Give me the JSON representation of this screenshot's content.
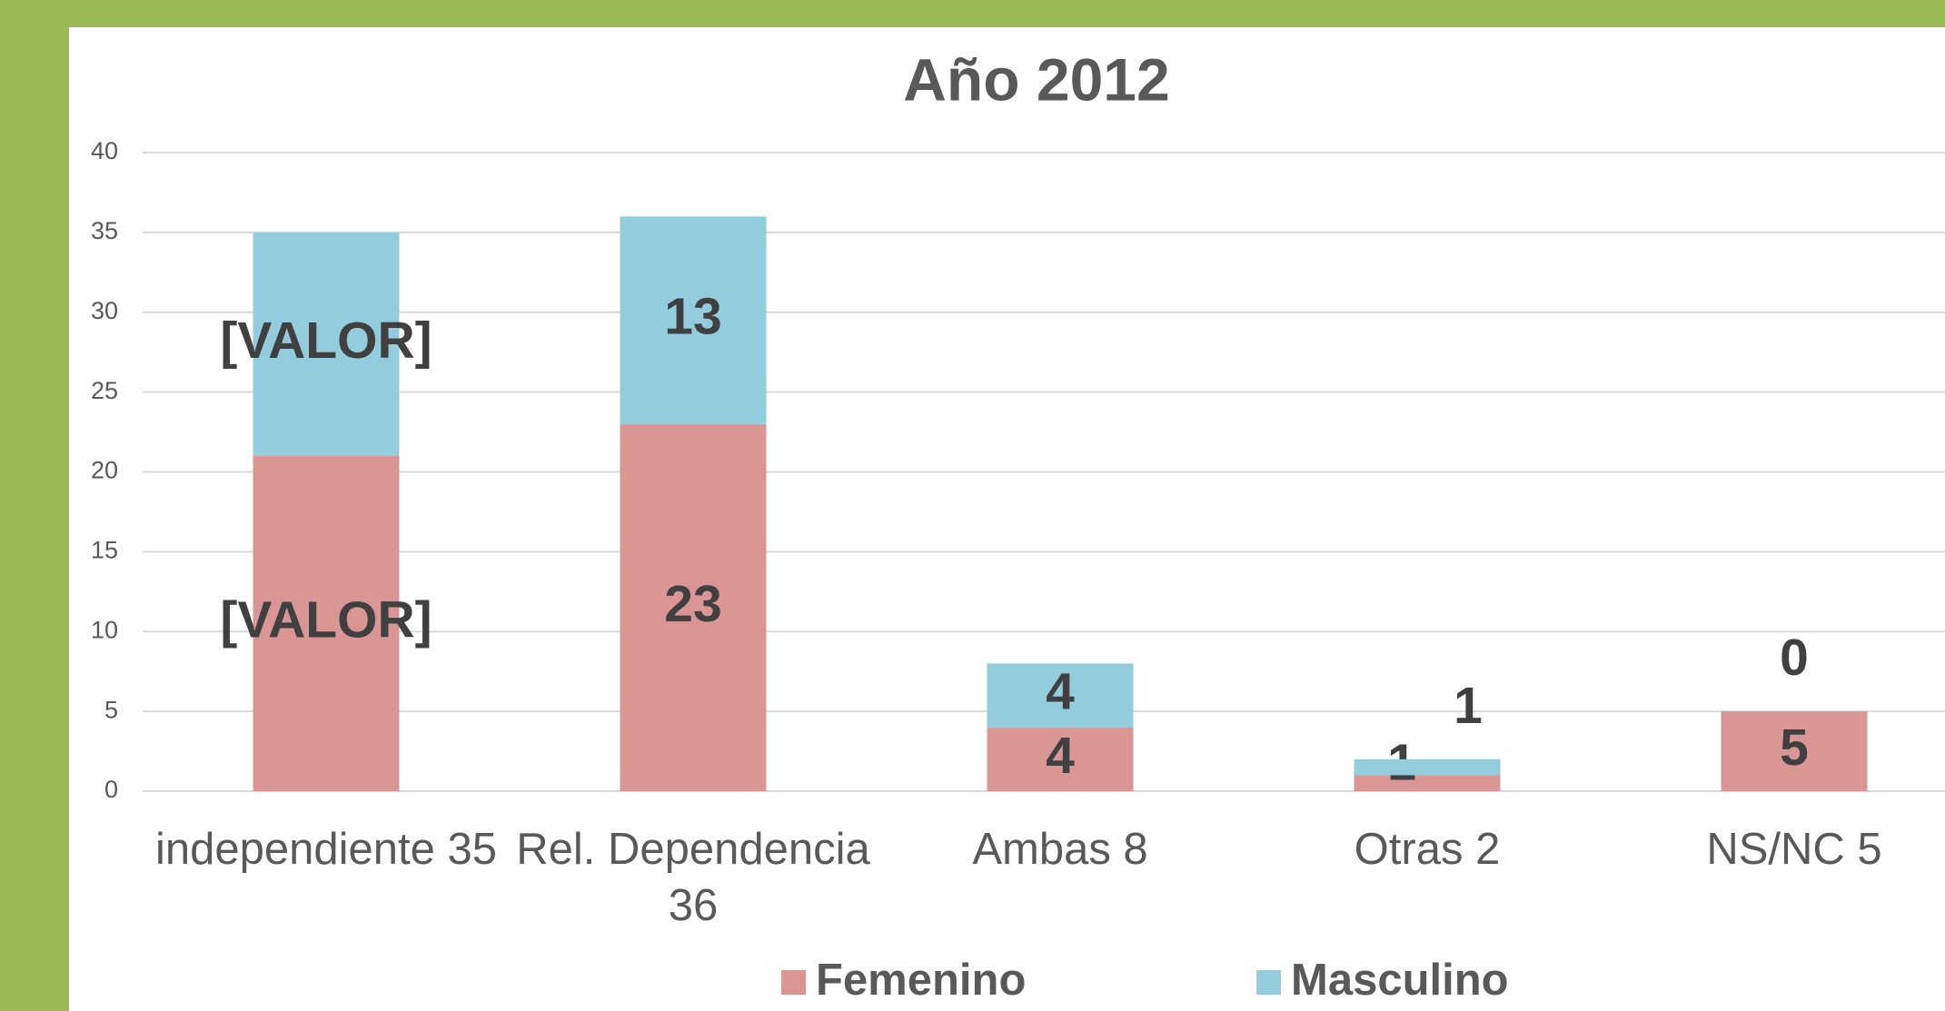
{
  "chart_data": {
    "type": "stacked_bar",
    "title": "Año 2012",
    "categories": [
      "independiente 35",
      "Rel. Dependencia 36",
      "Ambas 8",
      "Otras 2",
      "NS/NC 5"
    ],
    "series": [
      {
        "name": "Femenino",
        "color": "#d99694",
        "values": [
          21,
          23,
          4,
          1,
          5
        ],
        "value_labels": [
          "[VALOR]",
          "23",
          "4",
          "1",
          "5"
        ]
      },
      {
        "name": "Masculino",
        "color": "#93cddd",
        "values": [
          14,
          13,
          4,
          1,
          0
        ],
        "value_labels": [
          "[VALOR]",
          "13",
          "4",
          "1",
          "0"
        ]
      }
    ],
    "ylim": [
      0,
      40
    ],
    "yticks": [
      0,
      5,
      10,
      15,
      20,
      25,
      30,
      35,
      40
    ],
    "grid": true,
    "legend": "bottom"
  }
}
